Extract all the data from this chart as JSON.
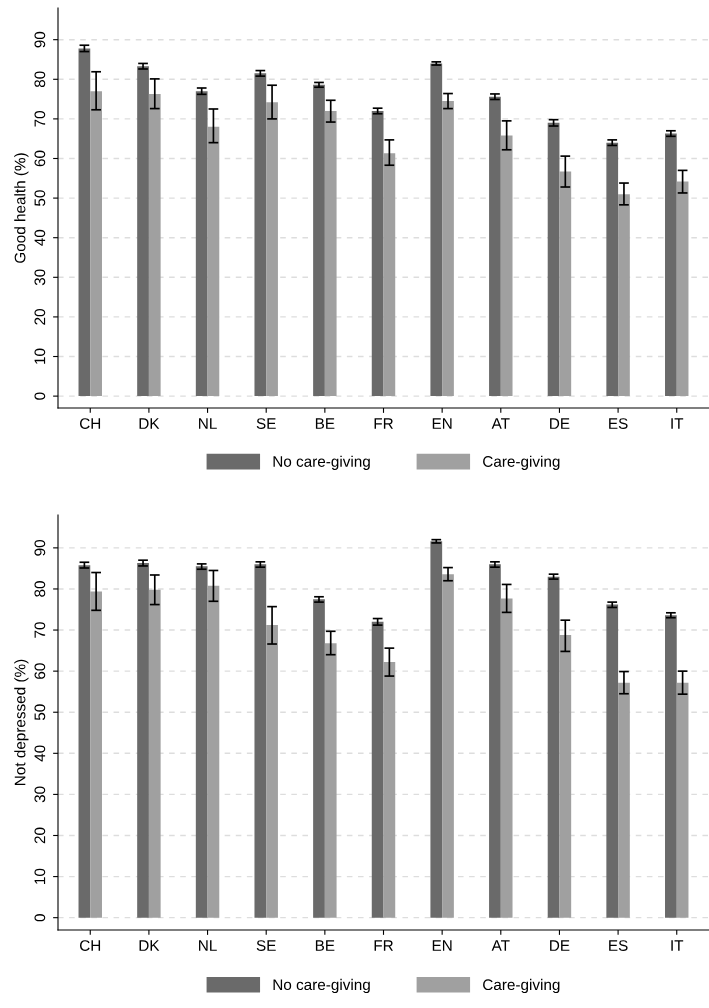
{
  "chart_data": [
    {
      "type": "bar",
      "ylabel": "Good health (%)",
      "categories": [
        "CH",
        "DK",
        "NL",
        "SE",
        "BE",
        "FR",
        "EN",
        "AT",
        "DE",
        "ES",
        "IT"
      ],
      "ylim": [
        -3,
        98
      ],
      "yticks": [
        0,
        10,
        20,
        30,
        40,
        50,
        60,
        70,
        80,
        90
      ],
      "grid": "y",
      "legend": "bottom",
      "series": [
        {
          "name": "No care-giving",
          "color": "#6a6a6a",
          "values": [
            87.8,
            83.3,
            77.0,
            81.5,
            78.6,
            72.0,
            84.0,
            75.6,
            69.0,
            64.0,
            66.3
          ],
          "errors": [
            [
              87.0,
              88.6
            ],
            [
              82.6,
              84.0
            ],
            [
              76.2,
              77.8
            ],
            [
              80.8,
              82.2
            ],
            [
              78.0,
              79.2
            ],
            [
              71.3,
              72.7
            ],
            [
              83.6,
              84.4
            ],
            [
              74.9,
              76.3
            ],
            [
              68.2,
              69.8
            ],
            [
              63.3,
              64.7
            ],
            [
              65.6,
              67.0
            ]
          ]
        },
        {
          "name": "Care-giving",
          "color": "#a0a0a0",
          "values": [
            77.0,
            76.3,
            68.0,
            74.2,
            72.0,
            61.3,
            74.5,
            65.8,
            56.7,
            51.0,
            54.2
          ],
          "errors": [
            [
              72.3,
              81.9
            ],
            [
              72.6,
              80.1
            ],
            [
              64.0,
              72.5
            ],
            [
              70.0,
              78.5
            ],
            [
              69.2,
              74.7
            ],
            [
              58.3,
              64.7
            ],
            [
              72.6,
              76.4
            ],
            [
              62.2,
              69.5
            ],
            [
              52.8,
              60.6
            ],
            [
              48.3,
              53.8
            ],
            [
              51.3,
              57.0
            ]
          ]
        }
      ]
    },
    {
      "type": "bar",
      "ylabel": "Not depressed (%)",
      "categories": [
        "CH",
        "DK",
        "NL",
        "SE",
        "BE",
        "FR",
        "EN",
        "AT",
        "DE",
        "ES",
        "IT"
      ],
      "ylim": [
        -3,
        98
      ],
      "yticks": [
        0,
        10,
        20,
        30,
        40,
        50,
        60,
        70,
        80,
        90
      ],
      "grid": "y",
      "legend": "bottom",
      "series": [
        {
          "name": "No care-giving",
          "color": "#6a6a6a",
          "values": [
            85.8,
            86.3,
            85.5,
            86.0,
            77.5,
            72.0,
            91.6,
            86.0,
            83.0,
            76.2,
            73.6
          ],
          "errors": [
            [
              85.1,
              86.5
            ],
            [
              85.6,
              87.0
            ],
            [
              84.8,
              86.1
            ],
            [
              85.3,
              86.6
            ],
            [
              76.8,
              78.1
            ],
            [
              71.2,
              72.8
            ],
            [
              91.2,
              92.0
            ],
            [
              85.3,
              86.6
            ],
            [
              82.4,
              83.6
            ],
            [
              75.5,
              76.8
            ],
            [
              73.0,
              74.2
            ]
          ]
        },
        {
          "name": "Care-giving",
          "color": "#a0a0a0",
          "values": [
            79.4,
            79.8,
            80.8,
            71.2,
            66.8,
            62.2,
            83.6,
            77.7,
            68.8,
            57.2,
            57.2
          ],
          "errors": [
            [
              74.8,
              84.0
            ],
            [
              76.2,
              83.4
            ],
            [
              77.0,
              84.5
            ],
            [
              66.6,
              75.7
            ],
            [
              64.0,
              69.7
            ],
            [
              58.8,
              65.6
            ],
            [
              82.0,
              85.2
            ],
            [
              74.3,
              81.1
            ],
            [
              64.8,
              72.4
            ],
            [
              54.5,
              59.9
            ],
            [
              54.4,
              60.0
            ]
          ]
        }
      ]
    }
  ]
}
